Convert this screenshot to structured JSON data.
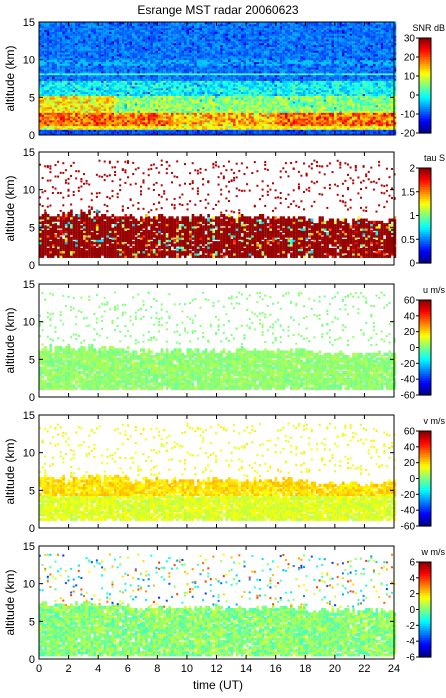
{
  "title": "Esrange MST radar 20060623",
  "xlabel": "time (UT)",
  "x_ticks": [
    "0",
    "2",
    "4",
    "6",
    "8",
    "10",
    "12",
    "14",
    "16",
    "18",
    "20",
    "22",
    "24"
  ],
  "chart_data": [
    {
      "type": "heatmap",
      "panel": "snr",
      "ylabel": "altitude (km)",
      "yticks": [
        "0",
        "5",
        "10",
        "15"
      ],
      "ylim": [
        0,
        15
      ],
      "xlim": [
        0,
        24
      ],
      "colorbar": {
        "label": "SNR dB",
        "range": [
          -20,
          30
        ],
        "ticks": [
          "30",
          "20",
          "10",
          "0",
          "-10",
          "-20"
        ]
      },
      "notes": "high SNR (10-25 dB) band at 1-3 km, moderate 3-7 km, background -10 dB above 8 km; horizontal line near 8 km"
    },
    {
      "type": "heatmap",
      "panel": "tau",
      "ylabel": "altitude (km)",
      "yticks": [
        "0",
        "5",
        "10",
        "15"
      ],
      "ylim": [
        0,
        15
      ],
      "xlim": [
        0,
        24
      ],
      "colorbar": {
        "label": "tau S",
        "range": [
          0,
          2
        ],
        "ticks": [
          "2",
          "1.5",
          "1",
          "0.5",
          "0"
        ]
      },
      "notes": "mostly ~2 s (dark red) between 1.5 and 6 km"
    },
    {
      "type": "heatmap",
      "panel": "u",
      "ylabel": "altitude (km)",
      "yticks": [
        "0",
        "5",
        "10",
        "15"
      ],
      "ylim": [
        0,
        15
      ],
      "xlim": [
        0,
        24
      ],
      "colorbar": {
        "label": "u m/s",
        "range": [
          -60,
          60
        ],
        "ticks": [
          "60",
          "40",
          "20",
          "0",
          "-20",
          "-40",
          "-60"
        ]
      },
      "notes": "mostly -5 to 5 m/s between 1 and 6 km"
    },
    {
      "type": "heatmap",
      "panel": "v",
      "ylabel": "altitude (km)",
      "yticks": [
        "0",
        "5",
        "10",
        "15"
      ],
      "ylim": [
        0,
        15
      ],
      "xlim": [
        0,
        24
      ],
      "colorbar": {
        "label": "v m/s",
        "range": [
          -60,
          60
        ],
        "ticks": [
          "60",
          "40",
          "20",
          "0",
          "-20",
          "-40",
          "-60"
        ]
      },
      "notes": "~10-20 m/s between 1 and 6 km, strongest near 5 km"
    },
    {
      "type": "heatmap",
      "panel": "w",
      "ylabel": "altitude (km)",
      "yticks": [
        "0",
        "5",
        "10",
        "15"
      ],
      "ylim": [
        0,
        15
      ],
      "xlim": [
        0,
        24
      ],
      "colorbar": {
        "label": "w m/s",
        "range": [
          -6,
          6
        ],
        "ticks": [
          "6",
          "4",
          "2",
          "0",
          "-2",
          "-4",
          "-6"
        ]
      },
      "notes": "mostly near 0 m/s between 0.5 and 6.5 km"
    }
  ]
}
